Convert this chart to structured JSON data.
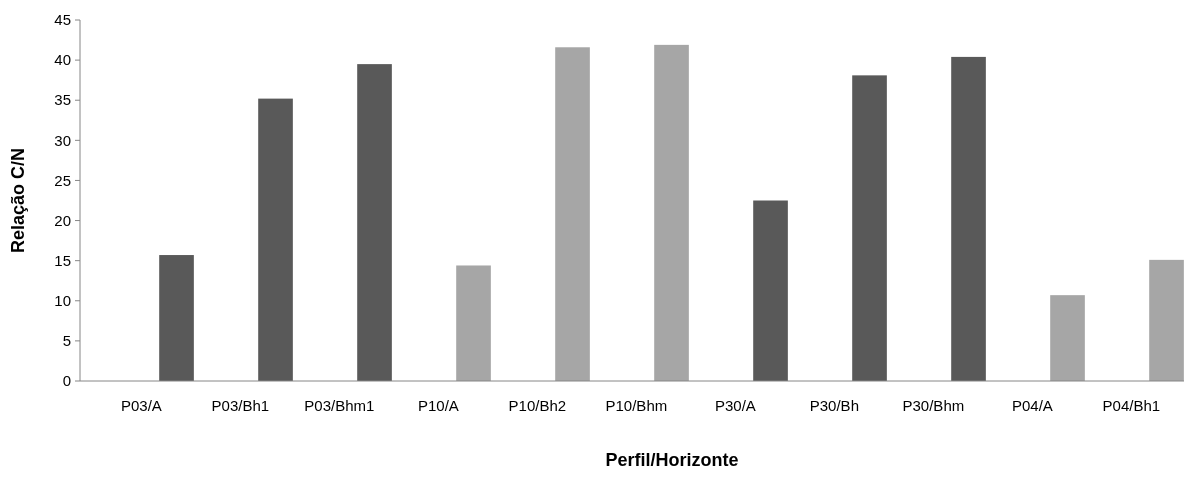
{
  "chart_data": {
    "type": "bar",
    "xlabel": "Perfil/Horizonte",
    "ylabel": "Relação C/N",
    "categories": [
      "P03/A",
      "P03/Bh1",
      "P03/Bhm1",
      "P10/A",
      "P10/Bh2",
      "P10/Bhm",
      "P30/A",
      "P30/Bh",
      "P30/Bhm",
      "P04/A",
      "P04/Bh1"
    ],
    "values": [
      15.7,
      35.2,
      39.5,
      14.4,
      41.6,
      41.9,
      22.5,
      38.1,
      40.4,
      10.7,
      15.1
    ],
    "colors": [
      "#595959",
      "#595959",
      "#595959",
      "#a6a6a6",
      "#a6a6a6",
      "#a6a6a6",
      "#595959",
      "#595959",
      "#595959",
      "#a6a6a6",
      "#a6a6a6"
    ],
    "ylim": [
      0,
      45
    ],
    "yticks": [
      0,
      5,
      10,
      15,
      20,
      25,
      30,
      35,
      40,
      45
    ],
    "grid": false
  }
}
